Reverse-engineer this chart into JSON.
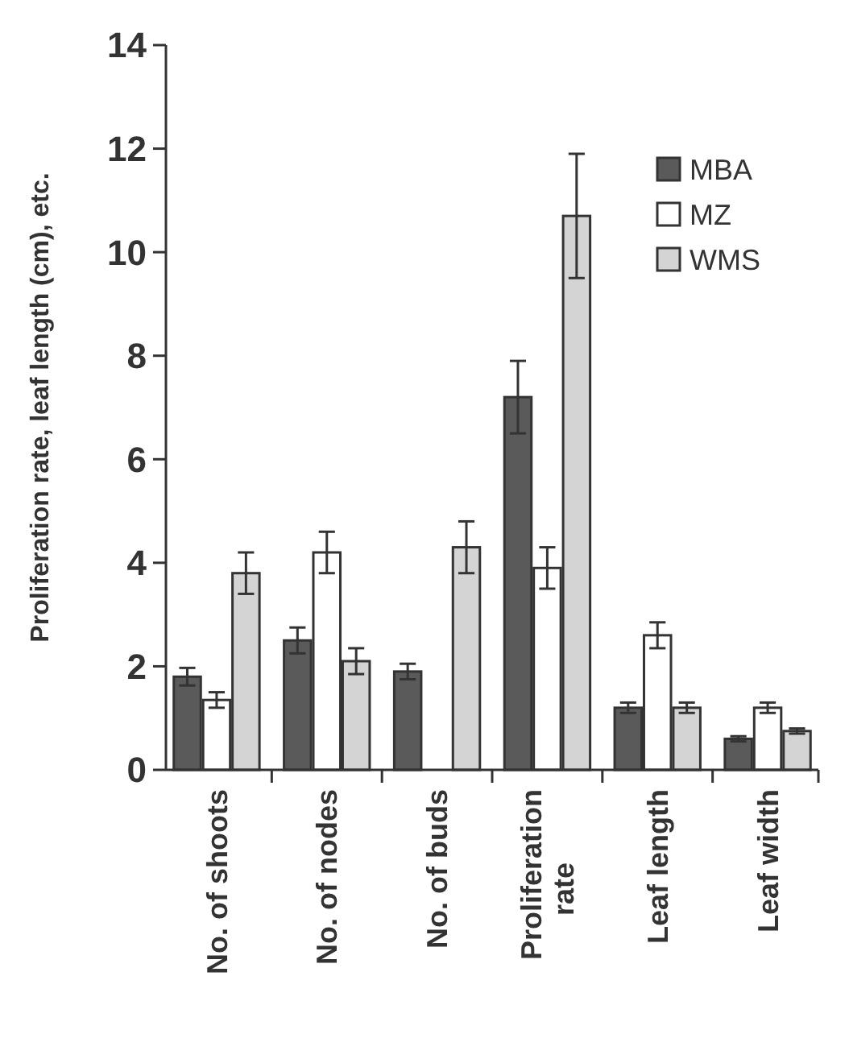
{
  "chart_data": {
    "type": "bar",
    "ylabel": "Proliferation rate, leaf length (cm), etc.",
    "categories": [
      "No. of shoots",
      "No. of nodes",
      "No. of buds",
      "Proliferation rate",
      "Leaf length",
      "Leaf width"
    ],
    "series": [
      {
        "name": "MBA",
        "color": "#5a5a5a",
        "values": [
          1.8,
          2.5,
          1.9,
          7.2,
          1.2,
          0.6
        ],
        "errors": [
          0.17,
          0.25,
          0.15,
          0.7,
          0.1,
          0.05
        ]
      },
      {
        "name": "MZ",
        "color": "#ffffff",
        "values": [
          1.35,
          4.2,
          null,
          3.9,
          2.6,
          1.2
        ],
        "errors": [
          0.15,
          0.4,
          null,
          0.4,
          0.25,
          0.1
        ]
      },
      {
        "name": "WMS",
        "color": "#d4d4d4",
        "values": [
          3.8,
          2.1,
          4.3,
          10.7,
          1.2,
          0.75
        ],
        "errors": [
          0.4,
          0.25,
          0.5,
          1.2,
          0.1,
          0.05
        ]
      }
    ],
    "ylim": [
      0,
      14
    ],
    "yticks": [
      0,
      2,
      4,
      6,
      8,
      10,
      12,
      14
    ],
    "grid": false,
    "legend": "top right"
  }
}
